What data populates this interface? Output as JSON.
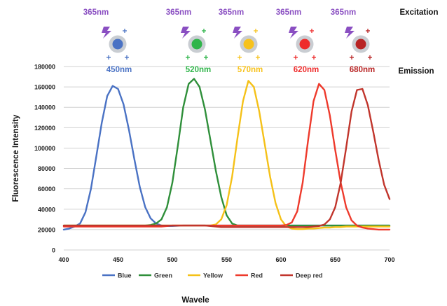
{
  "colors": {
    "excitation": "#8a4fc2",
    "blue": "#4a72c4",
    "green": "#2f8f3a",
    "yellow": "#f5c118",
    "red": "#ee3a2c",
    "deep_red": "#c1352c",
    "grid": "#d0d0d0",
    "axis_text": "#222222"
  },
  "excitation_row_label": "Excitation",
  "emission_row_label": "Emission",
  "emitters": [
    {
      "excitation": "365nm",
      "emission": "450nm",
      "color": "#4a72c4",
      "icon": "lightning-icon"
    },
    {
      "excitation": "365nm",
      "emission": "520nm",
      "color": "#2fb54a",
      "icon": "lightning-icon"
    },
    {
      "excitation": "365nm",
      "emission": "570nm",
      "color": "#f7c21c",
      "icon": "lightning-icon"
    },
    {
      "excitation": "365nm",
      "emission": "620nm",
      "color": "#ee2c2c",
      "icon": "lightning-icon"
    },
    {
      "excitation": "365nm",
      "emission": "680nm",
      "color": "#b82424",
      "icon": "lightning-icon"
    }
  ],
  "chart_data": {
    "type": "line",
    "title": "",
    "xlabel": "Wavele",
    "ylabel": "Fluorescence Intensity",
    "xlim": [
      400,
      700
    ],
    "ylim": [
      0,
      180000
    ],
    "x_ticks": [
      400,
      450,
      500,
      550,
      600,
      650,
      700
    ],
    "y_ticks": [
      0,
      20000,
      40000,
      60000,
      80000,
      100000,
      120000,
      140000,
      160000,
      180000
    ],
    "grid": true,
    "legend_position": "bottom",
    "x": [
      400,
      405,
      410,
      415,
      420,
      425,
      430,
      435,
      440,
      445,
      450,
      455,
      460,
      465,
      470,
      475,
      480,
      485,
      490,
      495,
      500,
      505,
      510,
      515,
      520,
      525,
      530,
      535,
      540,
      545,
      550,
      555,
      560,
      565,
      570,
      575,
      580,
      585,
      590,
      595,
      600,
      605,
      610,
      615,
      620,
      625,
      630,
      635,
      640,
      645,
      650,
      655,
      660,
      665,
      670,
      675,
      680,
      685,
      690,
      695,
      700
    ],
    "series": [
      {
        "name": "Blue",
        "color": "#4a72c4",
        "values": [
          20000,
          21000,
          23000,
          26000,
          37000,
          60000,
          92000,
          125000,
          151000,
          161000,
          158000,
          143000,
          118000,
          89000,
          62000,
          42000,
          31000,
          26000,
          24000,
          23500,
          23500,
          23800,
          24000,
          24000,
          24000,
          24000,
          24000,
          24000,
          24000,
          24000,
          24000,
          24000,
          24000,
          24000,
          24000,
          24000,
          24000,
          24000,
          24000,
          24000,
          24000,
          24000,
          24000,
          24000,
          24000,
          24000,
          24000,
          24000,
          24000,
          24000,
          24000,
          24000,
          24000,
          24000,
          24000,
          24000,
          24000,
          24000,
          24000,
          24000,
          24000
        ]
      },
      {
        "name": "Green",
        "color": "#2f8f3a",
        "values": [
          24000,
          24000,
          24000,
          24000,
          24000,
          24000,
          24000,
          24000,
          24000,
          24000,
          24000,
          24000,
          24000,
          24000,
          24000,
          24000,
          24500,
          26000,
          30000,
          42000,
          66000,
          102000,
          140000,
          163000,
          168000,
          160000,
          138000,
          108000,
          78000,
          52000,
          34000,
          26000,
          24000,
          24000,
          24000,
          24000,
          24000,
          24000,
          24000,
          24000,
          24000,
          24000,
          24000,
          24000,
          24000,
          24000,
          24000,
          24000,
          24000,
          24000,
          24000,
          24000,
          24000,
          24000,
          24000,
          24000,
          24000,
          24000,
          24000,
          24000,
          24000
        ]
      },
      {
        "name": "Yellow",
        "color": "#f5c118",
        "values": [
          24000,
          24000,
          24000,
          24000,
          24000,
          24000,
          24000,
          24000,
          24000,
          24000,
          24000,
          24000,
          24000,
          24000,
          24000,
          24000,
          24000,
          24000,
          24000,
          24000,
          24000,
          24000,
          24000,
          24000,
          24000,
          24000,
          24000,
          24000,
          25000,
          30000,
          44000,
          72000,
          110000,
          146000,
          166000,
          160000,
          136000,
          104000,
          72000,
          46000,
          30000,
          23000,
          21000,
          20500,
          20500,
          21000,
          21000,
          21500,
          22000,
          22000,
          22500,
          22500,
          23000,
          23000,
          23000,
          23000,
          23000,
          23000,
          23000,
          23000,
          23000
        ]
      },
      {
        "name": "Red",
        "color": "#ee3a2c",
        "values": [
          23000,
          23000,
          23000,
          23000,
          23000,
          23000,
          23000,
          23000,
          23000,
          23000,
          23000,
          23000,
          23000,
          23000,
          23000,
          23000,
          23000,
          23000,
          23000,
          23500,
          24000,
          24000,
          24000,
          24000,
          24000,
          24000,
          24000,
          24000,
          24000,
          24000,
          24000,
          24000,
          24000,
          24000,
          24000,
          24000,
          24000,
          24000,
          24000,
          24000,
          24000,
          24500,
          27000,
          38000,
          66000,
          108000,
          146000,
          163000,
          157000,
          132000,
          98000,
          66000,
          42000,
          29000,
          24000,
          22000,
          21000,
          20500,
          20000,
          20000,
          20000
        ]
      },
      {
        "name": "Deep red",
        "color": "#c1352c",
        "values": [
          24000,
          24000,
          24000,
          24000,
          24000,
          24000,
          24000,
          24000,
          24000,
          24000,
          24000,
          24000,
          24000,
          24000,
          24000,
          24000,
          24000,
          24000,
          24000,
          24000,
          24000,
          24000,
          24000,
          24000,
          24000,
          24000,
          24000,
          23500,
          23000,
          22500,
          22500,
          22500,
          22500,
          22500,
          22500,
          22500,
          22500,
          22500,
          22500,
          22500,
          22500,
          22500,
          22500,
          22500,
          22500,
          22500,
          23000,
          23500,
          25000,
          30000,
          42000,
          66000,
          100000,
          136000,
          157000,
          158000,
          142000,
          116000,
          88000,
          64000,
          50000
        ]
      }
    ]
  }
}
